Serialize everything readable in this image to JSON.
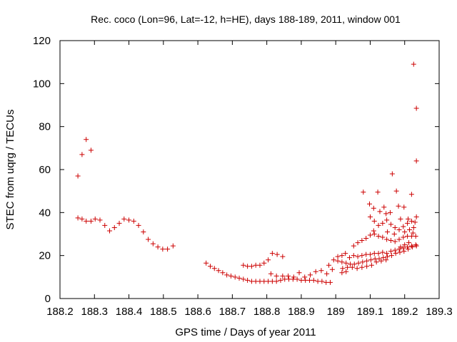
{
  "chart_data": {
    "type": "scatter",
    "title": "Rec. coco (Lon=96, Lat=-12, h=HE), days 188-189, 2011, window 001",
    "xlabel": "GPS time / Days of year 2011",
    "ylabel": "STEC from uqrg / TECUs",
    "xlim": [
      188.2,
      189.3
    ],
    "ylim": [
      0,
      120
    ],
    "xticks": [
      188.2,
      188.3,
      188.4,
      188.5,
      188.6,
      188.7,
      188.8,
      188.9,
      189,
      189.1,
      189.2,
      189.3
    ],
    "xtick_labels": [
      "188.2",
      "188.3",
      "188.4",
      "188.5",
      "188.6",
      "188.7",
      "188.8",
      "188.9",
      "189",
      "189.1",
      "189.2",
      "189.3"
    ],
    "yticks": [
      0,
      20,
      40,
      60,
      80,
      100,
      120
    ],
    "ytick_labels": [
      "0",
      "20",
      "40",
      "60",
      "80",
      "100",
      "120"
    ],
    "grid": false,
    "marker": "+",
    "color": "#cc0000",
    "series": [
      {
        "points": [
          [
            188.252,
            57.0
          ],
          [
            188.264,
            67.0
          ],
          [
            188.276,
            74.0
          ],
          [
            188.29,
            69.0
          ],
          [
            188.252,
            37.5
          ],
          [
            188.264,
            37.0
          ],
          [
            188.276,
            36.0
          ],
          [
            188.29,
            36.0
          ],
          [
            188.302,
            37.0
          ],
          [
            188.316,
            36.5
          ],
          [
            188.33,
            34.0
          ],
          [
            188.344,
            31.5
          ],
          [
            188.358,
            33.0
          ],
          [
            188.372,
            35.0
          ],
          [
            188.386,
            37.0
          ],
          [
            188.4,
            36.5
          ],
          [
            188.414,
            36.0
          ],
          [
            188.428,
            34.0
          ],
          [
            188.442,
            31.0
          ],
          [
            188.456,
            27.5
          ],
          [
            188.47,
            25.5
          ],
          [
            188.484,
            24.0
          ],
          [
            188.498,
            23.0
          ],
          [
            188.512,
            23.0
          ],
          [
            188.528,
            24.5
          ],
          [
            188.624,
            16.5
          ],
          [
            188.636,
            15.0
          ],
          [
            188.648,
            14.0
          ],
          [
            188.66,
            13.0
          ],
          [
            188.672,
            12.0
          ],
          [
            188.684,
            11.0
          ],
          [
            188.696,
            10.5
          ],
          [
            188.708,
            10.0
          ],
          [
            188.72,
            9.5
          ],
          [
            188.732,
            9.0
          ],
          [
            188.744,
            8.5
          ],
          [
            188.756,
            8.0
          ],
          [
            188.768,
            8.0
          ],
          [
            188.78,
            8.0
          ],
          [
            188.792,
            8.0
          ],
          [
            188.804,
            8.0
          ],
          [
            188.816,
            8.0
          ],
          [
            188.828,
            8.0
          ],
          [
            188.84,
            8.5
          ],
          [
            188.852,
            9.0
          ],
          [
            188.864,
            9.0
          ],
          [
            188.876,
            9.0
          ],
          [
            188.888,
            9.0
          ],
          [
            188.9,
            8.5
          ],
          [
            188.912,
            8.5
          ],
          [
            188.924,
            8.5
          ],
          [
            188.936,
            8.5
          ],
          [
            188.948,
            8.0
          ],
          [
            188.96,
            8.0
          ],
          [
            188.972,
            7.5
          ],
          [
            188.984,
            7.5
          ],
          [
            188.732,
            15.5
          ],
          [
            188.744,
            15.0
          ],
          [
            188.756,
            15.0
          ],
          [
            188.768,
            15.5
          ],
          [
            188.78,
            15.5
          ],
          [
            188.792,
            16.5
          ],
          [
            188.804,
            18.0
          ],
          [
            188.816,
            21.0
          ],
          [
            188.83,
            20.5
          ],
          [
            188.846,
            19.5
          ],
          [
            188.812,
            11.5
          ],
          [
            188.828,
            10.5
          ],
          [
            188.846,
            10.5
          ],
          [
            188.862,
            10.5
          ],
          [
            188.878,
            10.0
          ],
          [
            188.894,
            12.0
          ],
          [
            188.91,
            10.0
          ],
          [
            188.926,
            11.0
          ],
          [
            188.942,
            12.5
          ],
          [
            188.958,
            13.0
          ],
          [
            188.974,
            11.5
          ],
          [
            188.99,
            13.5
          ],
          [
            188.98,
            15.5
          ],
          [
            188.994,
            18.0
          ],
          [
            189.006,
            19.5
          ],
          [
            189.018,
            20.0
          ],
          [
            189.028,
            21.0
          ],
          [
            189.04,
            19.0
          ],
          [
            189.052,
            20.0
          ],
          [
            189.064,
            19.5
          ],
          [
            189.076,
            20.0
          ],
          [
            189.088,
            20.5
          ],
          [
            189.1,
            20.5
          ],
          [
            189.112,
            21.0
          ],
          [
            189.124,
            21.0
          ],
          [
            189.136,
            21.5
          ],
          [
            189.148,
            21.0
          ],
          [
            189.16,
            22.0
          ],
          [
            189.172,
            22.5
          ],
          [
            189.184,
            23.0
          ],
          [
            189.196,
            23.5
          ],
          [
            189.208,
            24.0
          ],
          [
            189.22,
            24.5
          ],
          [
            189.232,
            25.0
          ],
          [
            189.006,
            17.5
          ],
          [
            189.018,
            17.0
          ],
          [
            189.03,
            16.5
          ],
          [
            189.042,
            16.0
          ],
          [
            189.054,
            16.0
          ],
          [
            189.066,
            16.5
          ],
          [
            189.078,
            17.0
          ],
          [
            189.09,
            17.5
          ],
          [
            189.102,
            18.0
          ],
          [
            189.114,
            18.5
          ],
          [
            189.126,
            18.5
          ],
          [
            189.138,
            19.0
          ],
          [
            189.15,
            19.5
          ],
          [
            189.162,
            20.0
          ],
          [
            189.174,
            21.0
          ],
          [
            189.186,
            21.5
          ],
          [
            189.198,
            22.0
          ],
          [
            189.21,
            23.0
          ],
          [
            189.222,
            24.0
          ],
          [
            189.234,
            24.5
          ],
          [
            189.02,
            14.0
          ],
          [
            189.034,
            14.5
          ],
          [
            189.048,
            14.5
          ],
          [
            189.062,
            14.0
          ],
          [
            189.076,
            14.5
          ],
          [
            189.09,
            15.0
          ],
          [
            189.104,
            15.5
          ],
          [
            189.118,
            17.0
          ],
          [
            189.132,
            17.5
          ],
          [
            189.146,
            18.0
          ],
          [
            189.018,
            12.0
          ],
          [
            189.03,
            12.5
          ],
          [
            189.052,
            24.5
          ],
          [
            189.064,
            26.0
          ],
          [
            189.076,
            27.0
          ],
          [
            189.088,
            28.0
          ],
          [
            189.1,
            29.5
          ],
          [
            189.112,
            30.0
          ],
          [
            189.124,
            29.0
          ],
          [
            189.136,
            28.5
          ],
          [
            189.148,
            27.5
          ],
          [
            189.16,
            27.0
          ],
          [
            189.172,
            26.5
          ],
          [
            189.184,
            27.5
          ],
          [
            189.196,
            28.5
          ],
          [
            189.208,
            29.0
          ],
          [
            189.22,
            29.0
          ],
          [
            189.232,
            29.0
          ],
          [
            189.08,
            49.5
          ],
          [
            189.098,
            44.0
          ],
          [
            189.11,
            42.0
          ],
          [
            189.122,
            49.5
          ],
          [
            189.128,
            40.5
          ],
          [
            189.14,
            42.5
          ],
          [
            189.146,
            39.5
          ],
          [
            189.158,
            40.0
          ],
          [
            189.164,
            58.0
          ],
          [
            189.176,
            50.0
          ],
          [
            189.182,
            43.0
          ],
          [
            189.188,
            37.0
          ],
          [
            189.198,
            42.5
          ],
          [
            189.21,
            37.0
          ],
          [
            189.22,
            48.5
          ],
          [
            189.226,
            109.0
          ],
          [
            189.234,
            88.5
          ],
          [
            189.234,
            64.0
          ],
          [
            189.234,
            38.0
          ],
          [
            189.1,
            38.0
          ],
          [
            189.112,
            36.0
          ],
          [
            189.124,
            34.0
          ],
          [
            189.136,
            35.0
          ],
          [
            189.148,
            36.5
          ],
          [
            189.16,
            34.5
          ],
          [
            189.172,
            33.0
          ],
          [
            189.184,
            32.0
          ],
          [
            189.196,
            33.5
          ],
          [
            189.208,
            35.0
          ],
          [
            189.22,
            36.0
          ],
          [
            189.23,
            35.5
          ],
          [
            189.11,
            31.5
          ],
          [
            189.15,
            31.0
          ],
          [
            189.17,
            30.0
          ],
          [
            189.2,
            31.0
          ],
          [
            189.214,
            32.0
          ],
          [
            189.226,
            33.0
          ],
          [
            189.224,
            30.5
          ],
          [
            189.212,
            26.0
          ],
          [
            189.2,
            25.0
          ],
          [
            189.188,
            24.0
          ]
        ]
      }
    ]
  }
}
